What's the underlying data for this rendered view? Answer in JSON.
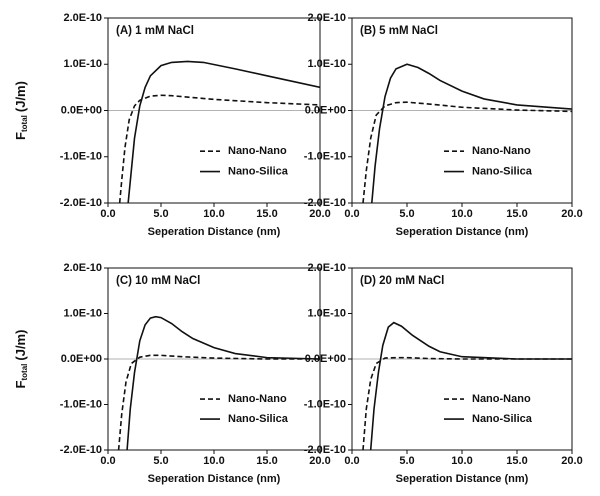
{
  "chart_data": [
    {
      "type": "line",
      "title": "(A) 1 mM NaCl",
      "xlabel": "Seperation Distance (nm)",
      "ylabel": {
        "main": "F",
        "sub": "total",
        "unit": "(J/m)"
      },
      "xlim": [
        0,
        20
      ],
      "ylim": [
        -2e-10,
        2e-10
      ],
      "xticks": [
        {
          "value": 0,
          "label": "0.0"
        },
        {
          "value": 5,
          "label": "5.0"
        },
        {
          "value": 10,
          "label": "10.0"
        },
        {
          "value": 15,
          "label": "15.0"
        },
        {
          "value": 20,
          "label": "20.0"
        }
      ],
      "yticks": [
        {
          "value": -2e-10,
          "label": "-2.0E-10"
        },
        {
          "value": -1e-10,
          "label": "-1.0E-10"
        },
        {
          "value": 0,
          "label": "0.0E+00"
        },
        {
          "value": 1e-10,
          "label": "1.0E-10"
        },
        {
          "value": 2e-10,
          "label": "2.0E-10"
        }
      ],
      "series": [
        {
          "name": "Nano-Nano",
          "color": "#111111",
          "dash": "dashed",
          "x": [
            1.1,
            1.3,
            1.6,
            2,
            2.5,
            3,
            4,
            5,
            6,
            8,
            10,
            15,
            20
          ],
          "values": [
            -2e-10,
            -1.5e-10,
            -8e-11,
            -2e-11,
            1e-11,
            2.2e-11,
            3.1e-11,
            3.3e-11,
            3.2e-11,
            2.8e-11,
            2.4e-11,
            1.7e-11,
            1.2e-11
          ]
        },
        {
          "name": "Nano-Silica",
          "color": "#111111",
          "dash": "solid",
          "x": [
            1.9,
            2.2,
            2.5,
            3,
            3.5,
            4,
            5,
            6,
            7.5,
            9,
            12,
            15,
            20
          ],
          "values": [
            -2e-10,
            -1.3e-10,
            -6e-11,
            1e-11,
            5e-11,
            7.5e-11,
            9.7e-11,
            1.04e-10,
            1.06e-10,
            1.04e-10,
            9e-11,
            7.5e-11,
            5e-11
          ]
        }
      ]
    },
    {
      "type": "line",
      "title": "(B) 5 mM NaCl",
      "xlabel": "Seperation Distance (nm)",
      "xlim": [
        0,
        20
      ],
      "ylim": [
        -2e-10,
        2e-10
      ],
      "xticks": [
        {
          "value": 0,
          "label": "0.0"
        },
        {
          "value": 5,
          "label": "5.0"
        },
        {
          "value": 10,
          "label": "10.0"
        },
        {
          "value": 15,
          "label": "15.0"
        },
        {
          "value": 20,
          "label": "20.0"
        }
      ],
      "yticks": [
        {
          "value": -2e-10,
          "label": "-2.0E-10"
        },
        {
          "value": -1e-10,
          "label": "-1.0E-10"
        },
        {
          "value": 0,
          "label": "0.0E+00"
        },
        {
          "value": 1e-10,
          "label": "1.0E-10"
        },
        {
          "value": 2e-10,
          "label": "2.0E-10"
        }
      ],
      "series": [
        {
          "name": "Nano-Nano",
          "color": "#111111",
          "dash": "dashed",
          "x": [
            1,
            1.3,
            1.7,
            2.2,
            3,
            4,
            5,
            7,
            10,
            15,
            20
          ],
          "values": [
            -2e-10,
            -1.3e-10,
            -6e-11,
            -1e-11,
            1e-11,
            1.7e-11,
            1.8e-11,
            1.4e-11,
            7e-12,
            1e-12,
            -2e-12
          ]
        },
        {
          "name": "Nano-Silica",
          "color": "#111111",
          "dash": "solid",
          "x": [
            1.8,
            2.1,
            2.5,
            3,
            3.5,
            4,
            5,
            6,
            7,
            8,
            10,
            12,
            15,
            20
          ],
          "values": [
            -2e-10,
            -1.2e-10,
            -4e-11,
            3e-11,
            7e-11,
            9e-11,
            1e-10,
            9.3e-11,
            8e-11,
            6.5e-11,
            4.2e-11,
            2.5e-11,
            1.2e-11,
            3e-12
          ]
        }
      ]
    },
    {
      "type": "line",
      "title": "(C) 10 mM NaCl",
      "xlabel": "Seperation Distance (nm)",
      "ylabel": {
        "main": "F",
        "sub": "total",
        "unit": "(J/m)"
      },
      "xlim": [
        0,
        20
      ],
      "ylim": [
        -2e-10,
        2e-10
      ],
      "xticks": [
        {
          "value": 0,
          "label": "0.0"
        },
        {
          "value": 5,
          "label": "5.0"
        },
        {
          "value": 10,
          "label": "10.0"
        },
        {
          "value": 15,
          "label": "15.0"
        },
        {
          "value": 20,
          "label": "20.0"
        }
      ],
      "yticks": [
        {
          "value": -2e-10,
          "label": "-2.0E-10"
        },
        {
          "value": -1e-10,
          "label": "-1.0E-10"
        },
        {
          "value": 0,
          "label": "0.0E+00"
        },
        {
          "value": 1e-10,
          "label": "1.0E-10"
        },
        {
          "value": 2e-10,
          "label": "2.0E-10"
        }
      ],
      "series": [
        {
          "name": "Nano-Nano",
          "color": "#111111",
          "dash": "dashed",
          "x": [
            1,
            1.3,
            1.7,
            2.2,
            3,
            4,
            5,
            7,
            10,
            15,
            20
          ],
          "values": [
            -2e-10,
            -1.2e-10,
            -5e-11,
            -1e-11,
            4e-12,
            8e-12,
            8e-12,
            5e-12,
            2e-12,
            0,
            0
          ]
        },
        {
          "name": "Nano-Silica",
          "color": "#111111",
          "dash": "solid",
          "x": [
            1.8,
            2.1,
            2.5,
            3,
            3.5,
            4,
            4.5,
            5,
            6,
            7,
            8,
            10,
            12,
            15,
            20
          ],
          "values": [
            -2e-10,
            -1.1e-10,
            -3e-11,
            4e-11,
            7.5e-11,
            9e-11,
            9.3e-11,
            9.1e-11,
            7.8e-11,
            6e-11,
            4.5e-11,
            2.5e-11,
            1.2e-11,
            3e-12,
            0
          ]
        }
      ]
    },
    {
      "type": "line",
      "title": "(D) 20 mM NaCl",
      "xlabel": "Seperation Distance (nm)",
      "xlim": [
        0,
        20
      ],
      "ylim": [
        -2e-10,
        2e-10
      ],
      "xticks": [
        {
          "value": 0,
          "label": "0.0"
        },
        {
          "value": 5,
          "label": "5.0"
        },
        {
          "value": 10,
          "label": "10.0"
        },
        {
          "value": 15,
          "label": "15.0"
        },
        {
          "value": 20,
          "label": "20.0"
        }
      ],
      "yticks": [
        {
          "value": -2e-10,
          "label": "-2.0E-10"
        },
        {
          "value": -1e-10,
          "label": "-1.0E-10"
        },
        {
          "value": 0,
          "label": "0.0E+00"
        },
        {
          "value": 1e-10,
          "label": "1.0E-10"
        },
        {
          "value": 2e-10,
          "label": "2.0E-10"
        }
      ],
      "series": [
        {
          "name": "Nano-Nano",
          "color": "#111111",
          "dash": "dashed",
          "x": [
            1,
            1.3,
            1.7,
            2.2,
            3,
            4,
            5,
            7,
            10,
            20
          ],
          "values": [
            -2e-10,
            -1.1e-10,
            -4.5e-11,
            -1e-11,
            2e-12,
            3e-12,
            3e-12,
            1e-12,
            0,
            0
          ]
        },
        {
          "name": "Nano-Silica",
          "color": "#111111",
          "dash": "solid",
          "x": [
            1.7,
            2,
            2.4,
            2.8,
            3.3,
            3.8,
            4.5,
            5.5,
            7,
            8,
            10,
            15,
            20
          ],
          "values": [
            -2e-10,
            -1.1e-10,
            -3e-11,
            3e-11,
            7e-11,
            8e-11,
            7.2e-11,
            5.2e-11,
            2.8e-11,
            1.6e-11,
            5e-12,
            0,
            0
          ]
        }
      ]
    }
  ]
}
